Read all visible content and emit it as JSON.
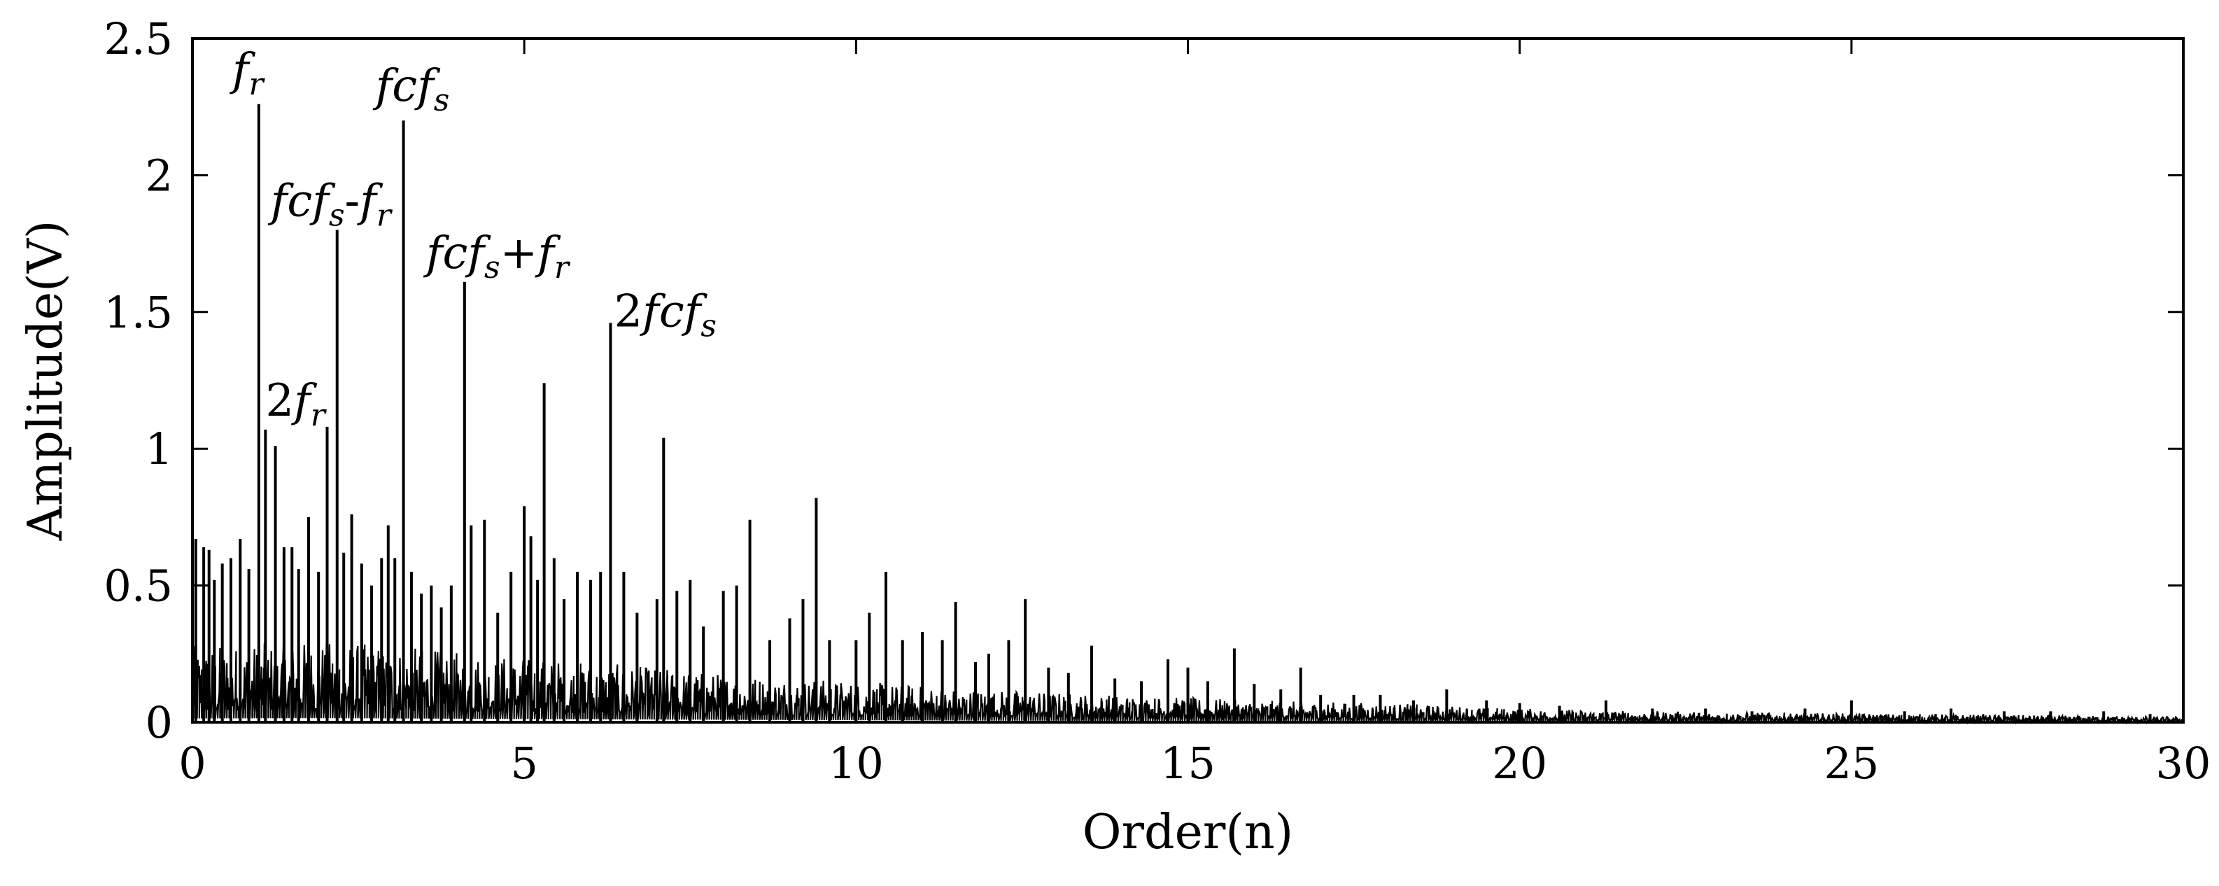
{
  "chart_data": {
    "type": "line",
    "title": "",
    "xlabel": "Order(n)",
    "ylabel": "Amplitude(V)",
    "xlim": [
      0,
      30
    ],
    "ylim": [
      0,
      2.5
    ],
    "xticks": [
      0,
      5,
      10,
      15,
      20,
      25,
      30
    ],
    "xtick_labels": [
      "0",
      "5",
      "10",
      "15",
      "20",
      "25",
      "30"
    ],
    "yticks": [
      0,
      0.5,
      1,
      1.5,
      2,
      2.5
    ],
    "ytick_labels": [
      "0",
      "0.5",
      "1",
      "1.5",
      "2",
      "2.5"
    ],
    "grid": false,
    "legend": "none",
    "line_color": "#000000",
    "noise_floor": {
      "x": [
        0,
        2,
        4,
        6,
        8,
        10,
        12,
        14,
        16,
        18,
        20,
        22,
        24,
        26,
        28,
        30
      ],
      "y": [
        0.28,
        0.3,
        0.26,
        0.22,
        0.18,
        0.15,
        0.12,
        0.1,
        0.08,
        0.07,
        0.05,
        0.04,
        0.035,
        0.03,
        0.025,
        0.02
      ]
    },
    "peaks": {
      "x": [
        0.05,
        0.17,
        0.25,
        0.33,
        0.45,
        0.58,
        0.72,
        0.85,
        1.0,
        1.1,
        1.25,
        1.38,
        1.5,
        1.6,
        1.75,
        1.9,
        2.03,
        2.18,
        2.28,
        2.4,
        2.55,
        2.7,
        2.85,
        2.95,
        3.05,
        3.18,
        3.3,
        3.45,
        3.6,
        3.75,
        3.9,
        4.1,
        4.2,
        4.4,
        4.6,
        4.8,
        5.0,
        5.1,
        5.2,
        5.3,
        5.45,
        5.6,
        5.8,
        6.0,
        6.15,
        6.3,
        6.5,
        6.7,
        7.0,
        7.1,
        7.3,
        7.5,
        7.7,
        8.0,
        8.2,
        8.4,
        8.7,
        9.0,
        9.2,
        9.4,
        9.6,
        10.0,
        10.2,
        10.45,
        10.7,
        11.0,
        11.3,
        11.5,
        11.8,
        12.0,
        12.3,
        12.55,
        12.9,
        13.2,
        13.55,
        13.9,
        14.3,
        14.7,
        15.0,
        15.3,
        15.7,
        16.0,
        16.4,
        16.7,
        17.0,
        17.5,
        17.9,
        18.4,
        18.9,
        19.5,
        20.0,
        20.6,
        21.3,
        22.0,
        22.8,
        23.5,
        24.3,
        25.0,
        25.8,
        26.5,
        27.3,
        28.0,
        28.8,
        29.5
      ],
      "y": [
        0.67,
        0.64,
        0.63,
        0.52,
        0.58,
        0.6,
        0.67,
        0.56,
        2.26,
        1.07,
        1.01,
        0.64,
        0.64,
        0.56,
        0.75,
        0.55,
        1.08,
        1.8,
        0.62,
        0.76,
        0.58,
        0.5,
        0.6,
        0.72,
        0.6,
        2.2,
        0.55,
        0.47,
        0.5,
        0.42,
        0.5,
        1.61,
        0.72,
        0.74,
        0.4,
        0.55,
        0.79,
        0.68,
        0.52,
        1.24,
        0.6,
        0.45,
        0.55,
        0.52,
        0.55,
        1.46,
        0.55,
        0.4,
        0.45,
        1.04,
        0.48,
        0.52,
        0.35,
        0.48,
        0.5,
        0.74,
        0.3,
        0.38,
        0.45,
        0.82,
        0.3,
        0.3,
        0.4,
        0.55,
        0.3,
        0.33,
        0.3,
        0.44,
        0.22,
        0.25,
        0.3,
        0.45,
        0.2,
        0.18,
        0.28,
        0.16,
        0.15,
        0.23,
        0.2,
        0.15,
        0.27,
        0.14,
        0.12,
        0.2,
        0.1,
        0.1,
        0.1,
        0.08,
        0.12,
        0.08,
        0.07,
        0.06,
        0.08,
        0.05,
        0.05,
        0.04,
        0.05,
        0.08,
        0.04,
        0.05,
        0.04,
        0.04,
        0.04,
        0.03
      ]
    },
    "annotations": [
      {
        "name": "fr",
        "x": 1.0,
        "y": 2.26,
        "parts": [
          {
            "t": "f",
            "sub": false
          },
          {
            "t": "r",
            "sub": true
          }
        ]
      },
      {
        "name": "2fr",
        "x": 1.1,
        "y": 1.07,
        "parts": [
          {
            "t": "2",
            "sub": false,
            "upright": true
          },
          {
            "t": "f",
            "sub": false
          },
          {
            "t": "r",
            "sub": true
          }
        ]
      },
      {
        "name": "fcfs-fr",
        "x": 2.18,
        "y": 1.8,
        "parts": [
          {
            "t": "fcf",
            "sub": false
          },
          {
            "t": "s",
            "sub": true
          },
          {
            "t": "-",
            "sub": false,
            "upright": true
          },
          {
            "t": "f",
            "sub": false
          },
          {
            "t": "r",
            "sub": true
          }
        ]
      },
      {
        "name": "fcfs",
        "x": 3.18,
        "y": 2.2,
        "parts": [
          {
            "t": "fcf",
            "sub": false
          },
          {
            "t": "s",
            "sub": true
          }
        ]
      },
      {
        "name": "fcfs+fr",
        "x": 4.1,
        "y": 1.61,
        "parts": [
          {
            "t": "fcf",
            "sub": false
          },
          {
            "t": "s",
            "sub": true
          },
          {
            "t": "+",
            "sub": false,
            "upright": true
          },
          {
            "t": "f",
            "sub": false
          },
          {
            "t": "r",
            "sub": true
          }
        ]
      },
      {
        "name": "2fcfs",
        "x": 6.3,
        "y": 1.46,
        "parts": [
          {
            "t": "2",
            "sub": false,
            "upright": true
          },
          {
            "t": "fcf",
            "sub": false
          },
          {
            "t": "s",
            "sub": true
          }
        ]
      }
    ]
  }
}
